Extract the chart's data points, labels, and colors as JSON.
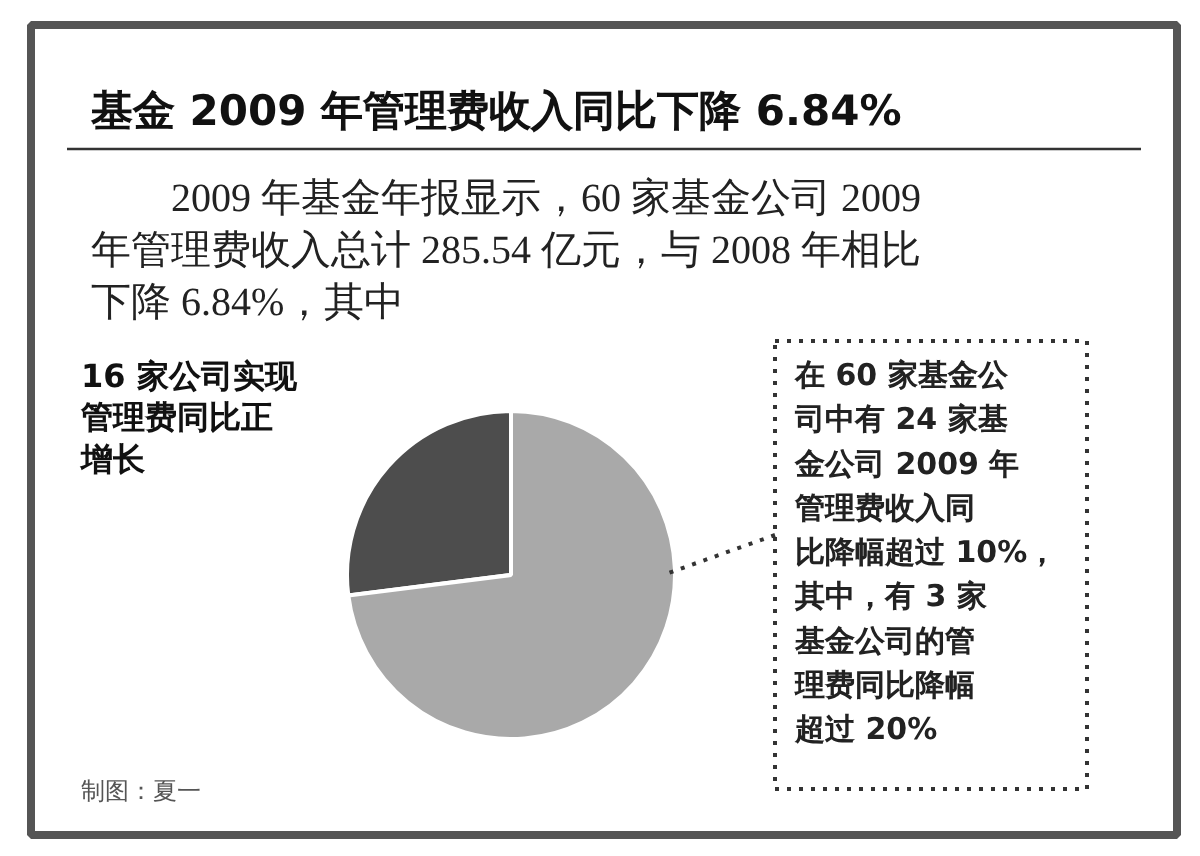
{
  "chart_data": {
    "type": "pie",
    "title": "基金 2009 年管理费收入同比下降 6.84%",
    "subtitle": "2009 年基金年报显示，60 家基金公司 2009 年管理费收入总计 285.54 亿元，与 2008 年相比下降 6.84%，其中",
    "categories": [
      "16 家公司实现管理费同比正增长",
      "在 60 家基金公司中有 24 家基金公司 2009 年管理费收入同比降幅超过 10%，其中，有 3 家基金公司的管理费同比降幅超过 20%"
    ],
    "values": [
      27,
      73
    ],
    "colors": [
      "#4d4d4d",
      "#a9a9a9"
    ],
    "annotations": [
      "制图：夏一"
    ]
  }
}
